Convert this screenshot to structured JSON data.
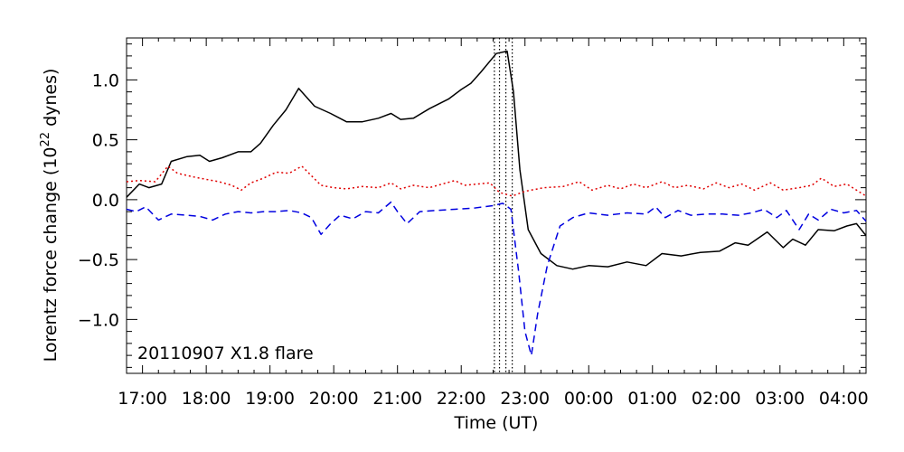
{
  "chart_data": {
    "type": "line",
    "title": "",
    "xlabel": "Time (UT)",
    "ylabel_main": "Lorentz force change (10",
    "ylabel_exp": "22",
    "ylabel_tail": " dynes)",
    "annotation": "20110907 X1.8 flare",
    "xlim": [
      16.75,
      28.35
    ],
    "ylim": [
      -1.45,
      1.35
    ],
    "x_ticks": [
      {
        "x": 17,
        "label": "17:00"
      },
      {
        "x": 18,
        "label": "18:00"
      },
      {
        "x": 19,
        "label": "19:00"
      },
      {
        "x": 20,
        "label": "20:00"
      },
      {
        "x": 21,
        "label": "21:00"
      },
      {
        "x": 22,
        "label": "22:00"
      },
      {
        "x": 23,
        "label": "23:00"
      },
      {
        "x": 24,
        "label": "00:00"
      },
      {
        "x": 25,
        "label": "01:00"
      },
      {
        "x": 26,
        "label": "02:00"
      },
      {
        "x": 27,
        "label": "03:00"
      },
      {
        "x": 28,
        "label": "04:00"
      }
    ],
    "y_ticks": [
      {
        "y": 1.0,
        "label": "1.0"
      },
      {
        "y": 0.5,
        "label": "0.5"
      },
      {
        "y": 0.0,
        "label": "0.0"
      },
      {
        "y": -0.5,
        "label": "−0.5"
      },
      {
        "y": -1.0,
        "label": "−1.0"
      }
    ],
    "vertical_markers": [
      22.52,
      22.6,
      22.7,
      22.8
    ],
    "series": [
      {
        "color": "#000000",
        "dash": "",
        "points": [
          [
            16.75,
            0.02
          ],
          [
            16.95,
            0.13
          ],
          [
            17.1,
            0.1
          ],
          [
            17.3,
            0.13
          ],
          [
            17.45,
            0.32
          ],
          [
            17.7,
            0.36
          ],
          [
            17.9,
            0.37
          ],
          [
            18.05,
            0.32
          ],
          [
            18.25,
            0.35
          ],
          [
            18.5,
            0.4
          ],
          [
            18.7,
            0.4
          ],
          [
            18.85,
            0.47
          ],
          [
            19.05,
            0.62
          ],
          [
            19.25,
            0.75
          ],
          [
            19.45,
            0.93
          ],
          [
            19.7,
            0.78
          ],
          [
            19.95,
            0.72
          ],
          [
            20.2,
            0.65
          ],
          [
            20.45,
            0.65
          ],
          [
            20.7,
            0.68
          ],
          [
            20.9,
            0.72
          ],
          [
            21.05,
            0.67
          ],
          [
            21.25,
            0.68
          ],
          [
            21.5,
            0.76
          ],
          [
            21.8,
            0.84
          ],
          [
            22.0,
            0.92
          ],
          [
            22.15,
            0.97
          ],
          [
            22.3,
            1.06
          ],
          [
            22.55,
            1.22
          ],
          [
            22.72,
            1.24
          ],
          [
            22.82,
            0.9
          ],
          [
            22.92,
            0.25
          ],
          [
            23.05,
            -0.25
          ],
          [
            23.25,
            -0.45
          ],
          [
            23.5,
            -0.55
          ],
          [
            23.75,
            -0.58
          ],
          [
            24.0,
            -0.55
          ],
          [
            24.3,
            -0.56
          ],
          [
            24.6,
            -0.52
          ],
          [
            24.9,
            -0.55
          ],
          [
            25.15,
            -0.45
          ],
          [
            25.45,
            -0.47
          ],
          [
            25.75,
            -0.44
          ],
          [
            26.05,
            -0.43
          ],
          [
            26.3,
            -0.36
          ],
          [
            26.5,
            -0.38
          ],
          [
            26.8,
            -0.27
          ],
          [
            27.05,
            -0.4
          ],
          [
            27.2,
            -0.33
          ],
          [
            27.4,
            -0.38
          ],
          [
            27.6,
            -0.25
          ],
          [
            27.85,
            -0.26
          ],
          [
            28.05,
            -0.22
          ],
          [
            28.2,
            -0.2
          ],
          [
            28.35,
            -0.3
          ]
        ]
      },
      {
        "color": "#e00000",
        "dash": "2,3",
        "points": [
          [
            16.75,
            0.15
          ],
          [
            16.95,
            0.16
          ],
          [
            17.2,
            0.15
          ],
          [
            17.4,
            0.28
          ],
          [
            17.55,
            0.22
          ],
          [
            17.8,
            0.19
          ],
          [
            18.0,
            0.17
          ],
          [
            18.2,
            0.15
          ],
          [
            18.4,
            0.12
          ],
          [
            18.55,
            0.08
          ],
          [
            18.7,
            0.14
          ],
          [
            18.9,
            0.18
          ],
          [
            19.1,
            0.23
          ],
          [
            19.3,
            0.22
          ],
          [
            19.5,
            0.28
          ],
          [
            19.65,
            0.2
          ],
          [
            19.8,
            0.12
          ],
          [
            20.0,
            0.1
          ],
          [
            20.2,
            0.09
          ],
          [
            20.45,
            0.11
          ],
          [
            20.7,
            0.1
          ],
          [
            20.9,
            0.14
          ],
          [
            21.05,
            0.09
          ],
          [
            21.25,
            0.12
          ],
          [
            21.5,
            0.1
          ],
          [
            21.7,
            0.13
          ],
          [
            21.9,
            0.16
          ],
          [
            22.05,
            0.12
          ],
          [
            22.25,
            0.13
          ],
          [
            22.45,
            0.14
          ],
          [
            22.6,
            0.06
          ],
          [
            22.8,
            0.03
          ],
          [
            23.0,
            0.07
          ],
          [
            23.3,
            0.1
          ],
          [
            23.6,
            0.11
          ],
          [
            23.85,
            0.15
          ],
          [
            24.05,
            0.08
          ],
          [
            24.3,
            0.12
          ],
          [
            24.5,
            0.09
          ],
          [
            24.7,
            0.13
          ],
          [
            24.9,
            0.1
          ],
          [
            25.15,
            0.15
          ],
          [
            25.35,
            0.1
          ],
          [
            25.55,
            0.12
          ],
          [
            25.8,
            0.09
          ],
          [
            26.0,
            0.14
          ],
          [
            26.2,
            0.1
          ],
          [
            26.4,
            0.13
          ],
          [
            26.6,
            0.08
          ],
          [
            26.85,
            0.14
          ],
          [
            27.05,
            0.08
          ],
          [
            27.3,
            0.1
          ],
          [
            27.5,
            0.12
          ],
          [
            27.65,
            0.18
          ],
          [
            27.85,
            0.11
          ],
          [
            28.05,
            0.13
          ],
          [
            28.2,
            0.08
          ],
          [
            28.35,
            0.03
          ]
        ]
      },
      {
        "color": "#0000e0",
        "dash": "8,5",
        "points": [
          [
            16.75,
            -0.08
          ],
          [
            16.9,
            -0.1
          ],
          [
            17.05,
            -0.06
          ],
          [
            17.25,
            -0.17
          ],
          [
            17.45,
            -0.12
          ],
          [
            17.7,
            -0.13
          ],
          [
            17.9,
            -0.14
          ],
          [
            18.1,
            -0.17
          ],
          [
            18.3,
            -0.12
          ],
          [
            18.5,
            -0.1
          ],
          [
            18.7,
            -0.11
          ],
          [
            18.9,
            -0.1
          ],
          [
            19.1,
            -0.1
          ],
          [
            19.3,
            -0.09
          ],
          [
            19.5,
            -0.11
          ],
          [
            19.65,
            -0.15
          ],
          [
            19.8,
            -0.29
          ],
          [
            19.95,
            -0.2
          ],
          [
            20.1,
            -0.13
          ],
          [
            20.3,
            -0.16
          ],
          [
            20.5,
            -0.1
          ],
          [
            20.7,
            -0.11
          ],
          [
            20.9,
            -0.02
          ],
          [
            21.0,
            -0.1
          ],
          [
            21.15,
            -0.2
          ],
          [
            21.35,
            -0.1
          ],
          [
            21.6,
            -0.09
          ],
          [
            21.9,
            -0.08
          ],
          [
            22.2,
            -0.07
          ],
          [
            22.5,
            -0.05
          ],
          [
            22.65,
            -0.03
          ],
          [
            22.78,
            -0.08
          ],
          [
            22.9,
            -0.6
          ],
          [
            23.0,
            -1.1
          ],
          [
            23.1,
            -1.3
          ],
          [
            23.2,
            -0.95
          ],
          [
            23.35,
            -0.55
          ],
          [
            23.55,
            -0.22
          ],
          [
            23.75,
            -0.15
          ],
          [
            24.0,
            -0.11
          ],
          [
            24.3,
            -0.13
          ],
          [
            24.6,
            -0.11
          ],
          [
            24.9,
            -0.12
          ],
          [
            25.05,
            -0.06
          ],
          [
            25.2,
            -0.15
          ],
          [
            25.4,
            -0.09
          ],
          [
            25.6,
            -0.13
          ],
          [
            25.85,
            -0.12
          ],
          [
            26.1,
            -0.12
          ],
          [
            26.35,
            -0.13
          ],
          [
            26.55,
            -0.11
          ],
          [
            26.75,
            -0.08
          ],
          [
            26.95,
            -0.15
          ],
          [
            27.1,
            -0.09
          ],
          [
            27.3,
            -0.25
          ],
          [
            27.45,
            -0.12
          ],
          [
            27.6,
            -0.17
          ],
          [
            27.8,
            -0.08
          ],
          [
            28.0,
            -0.11
          ],
          [
            28.2,
            -0.09
          ],
          [
            28.35,
            -0.18
          ]
        ]
      }
    ]
  }
}
